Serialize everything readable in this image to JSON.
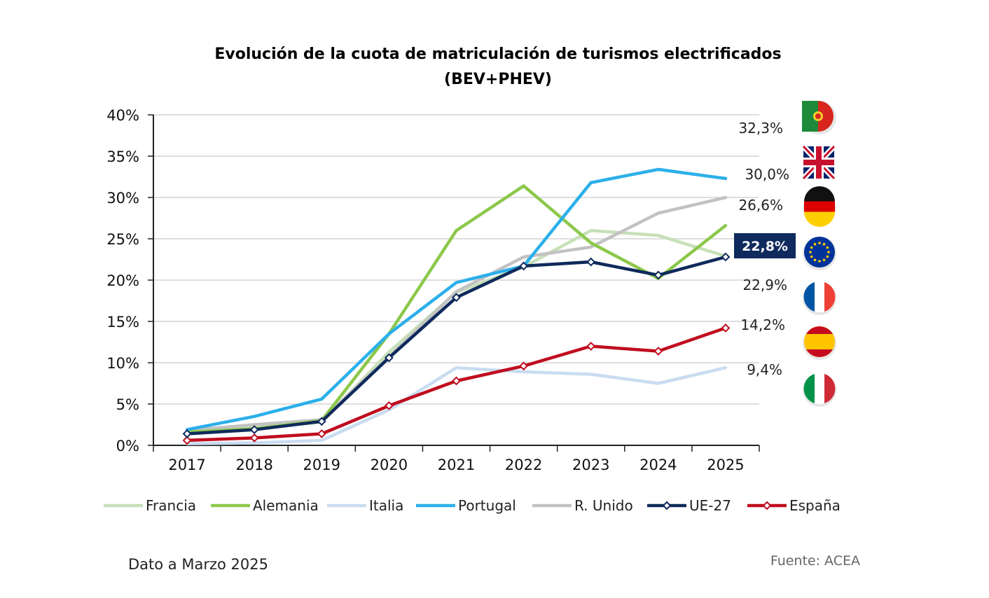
{
  "chart_data": {
    "type": "line",
    "title": "Evolución de la cuota de matriculación de turismos electrificados",
    "subtitle": "(BEV+PHEV)",
    "categories": [
      "2017",
      "2018",
      "2019",
      "2020",
      "2021",
      "2022",
      "2023",
      "2024",
      "2025"
    ],
    "y_tick_labels": [
      "0%",
      "5%",
      "10%",
      "15%",
      "20%",
      "25%",
      "30%",
      "35%",
      "40%"
    ],
    "ylim": [
      0,
      40
    ],
    "grid": true,
    "legend_placement": "bottom",
    "series": [
      {
        "name": "Francia",
        "color": "#c7e0b8",
        "markers": false,
        "values": [
          1.7,
          2.1,
          2.8,
          11.3,
          18.5,
          21.6,
          26.0,
          25.4,
          22.9
        ]
      },
      {
        "name": "Alemania",
        "color": "#8cc84b",
        "markers": false,
        "values": [
          1.6,
          2.0,
          3.0,
          13.5,
          26.0,
          31.4,
          24.5,
          20.2,
          26.6
        ]
      },
      {
        "name": "Italia",
        "color": "#c9dcf0",
        "markers": false,
        "values": [
          0.2,
          0.3,
          0.6,
          4.3,
          9.4,
          8.9,
          8.6,
          7.5,
          9.4
        ]
      },
      {
        "name": "Portugal",
        "color": "#2bb0ea",
        "markers": false,
        "values": [
          1.9,
          3.5,
          5.6,
          13.5,
          19.7,
          21.7,
          31.8,
          33.4,
          32.3
        ]
      },
      {
        "name": "R. Unido",
        "color": "#c2c2c2",
        "markers": false,
        "values": [
          1.8,
          2.5,
          3.1,
          10.7,
          18.6,
          22.8,
          24.0,
          28.1,
          30.0
        ]
      },
      {
        "name": "UE-27",
        "color": "#0f2a5c",
        "markers": true,
        "values": [
          1.4,
          1.9,
          2.9,
          10.6,
          17.9,
          21.7,
          22.2,
          20.6,
          22.8
        ]
      },
      {
        "name": "España",
        "color": "#c00d1e",
        "markers": true,
        "values": [
          0.6,
          0.9,
          1.4,
          4.8,
          7.8,
          9.6,
          12.0,
          11.4,
          14.2
        ]
      }
    ],
    "end_labels": [
      {
        "text": "32,3%",
        "value": 32.3,
        "series": "Portugal"
      },
      {
        "text": "30,0%",
        "value": 30.0,
        "series": "R. Unido"
      },
      {
        "text": "26,6%",
        "value": 26.6,
        "series": "Alemania"
      },
      {
        "text": "22,8%",
        "value": 22.8,
        "series": "UE-27",
        "highlight": true
      },
      {
        "text": "22,9%",
        "value": 22.9,
        "series": "Francia"
      },
      {
        "text": "14,2%",
        "value": 14.2,
        "series": "España"
      },
      {
        "text": "9,4%",
        "value": 9.4,
        "series": "Italia"
      }
    ],
    "flag_icons": [
      "portugal-flag-icon",
      "united-kingdom-flag-icon",
      "germany-flag-icon",
      "eu-flag-icon",
      "france-flag-icon",
      "spain-flag-icon",
      "italy-flag-icon"
    ]
  },
  "footer": {
    "note": "Dato a Marzo 2025",
    "source": "Fuente: ACEA"
  }
}
